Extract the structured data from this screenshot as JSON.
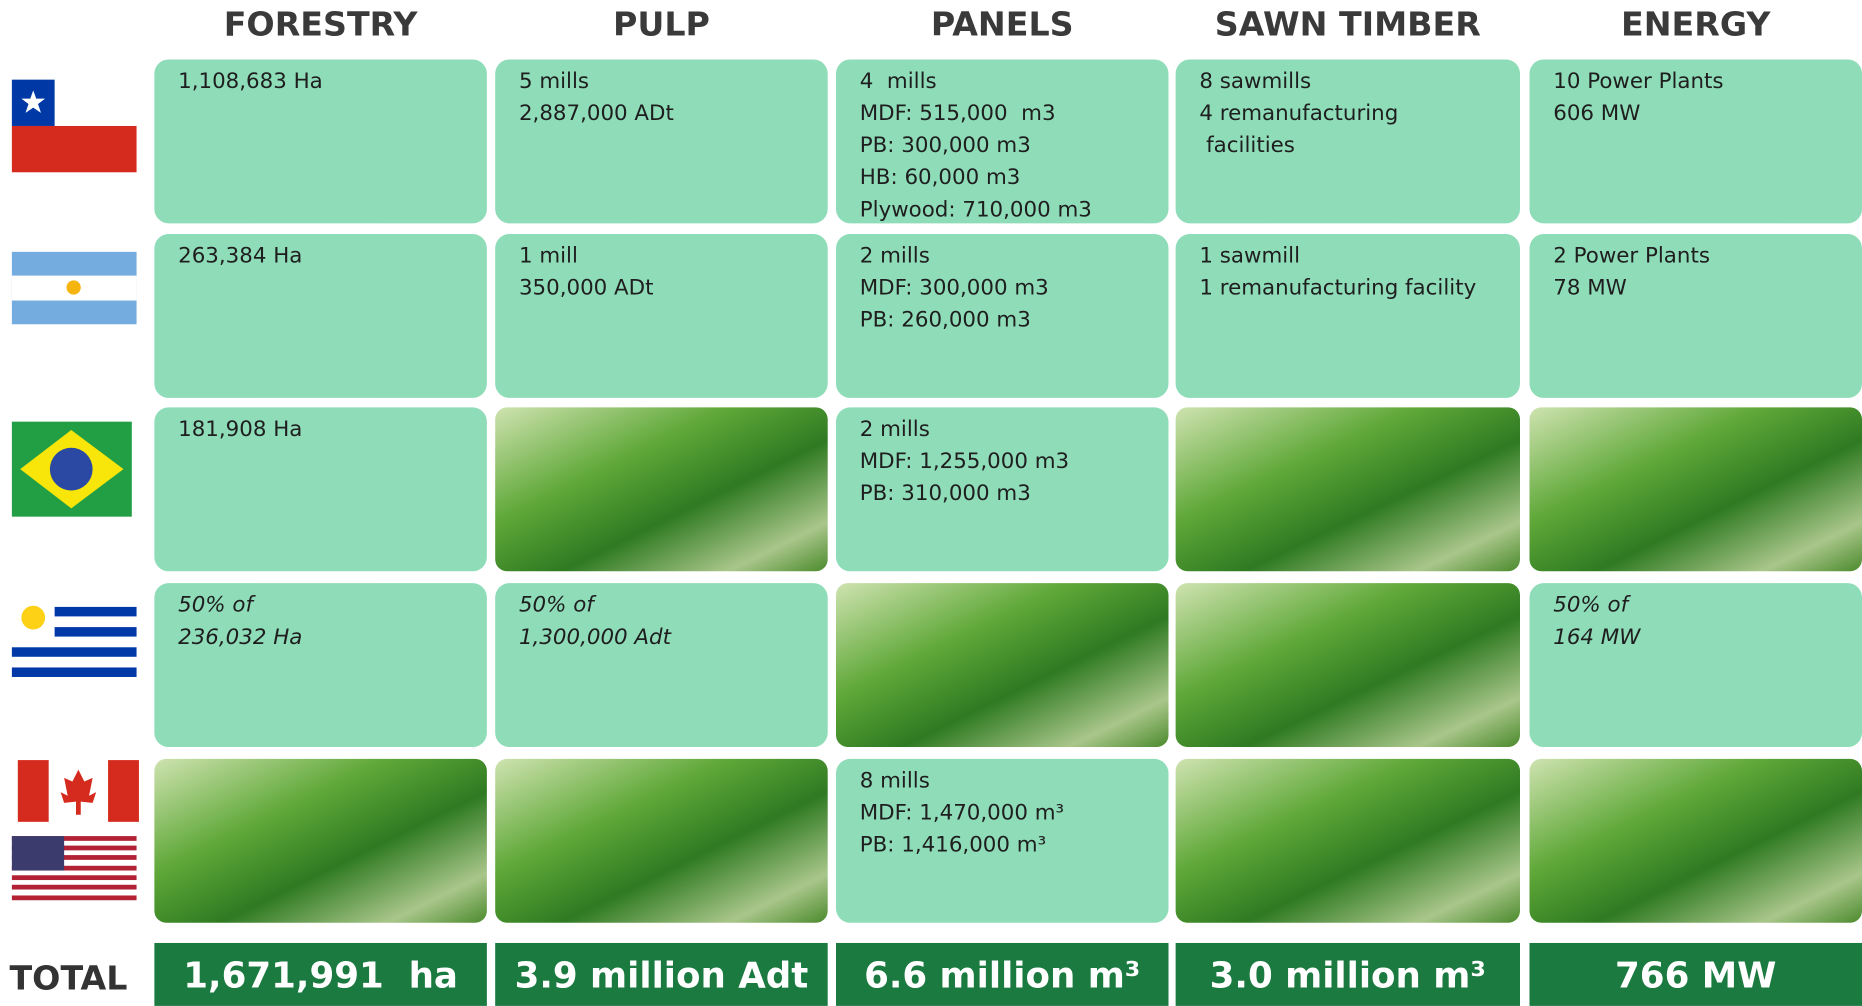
{
  "columns": [
    "FORESTRY",
    "PULP",
    "PANELS",
    "SAWN TIMBER",
    "ENERGY"
  ],
  "rows": [
    [
      [
        "1,108,683 Ha"
      ],
      [
        "5 mills",
        "2,887,000 ADt"
      ],
      [
        "4  mills",
        "MDF: 515,000  m3",
        "PB: 300,000 m3",
        "HB: 60,000 m3",
        "Plywood: 710,000 m3"
      ],
      [
        "8 sawmills",
        "4 remanufacturing",
        " facilities"
      ],
      [
        "10 Power Plants",
        "606 MW"
      ]
    ],
    [
      [
        "263,384 Ha"
      ],
      [
        "1 mill",
        "350,000 ADt"
      ],
      [
        "2 mills",
        "MDF: 300,000 m3",
        "PB: 260,000 m3"
      ],
      [
        "1 sawmill",
        "1 remanufacturing facility"
      ],
      [
        "2 Power Plants",
        "78 MW"
      ]
    ],
    [
      [
        "181,908 Ha"
      ],
      null,
      [
        "2 mills",
        "MDF: 1,255,000 m3",
        "PB: 310,000 m3"
      ],
      null,
      null
    ],
    [
      [
        "50% of",
        "236,032 Ha"
      ],
      [
        "50% of",
        "1,300,000 Adt"
      ],
      null,
      null,
      [
        "50% of",
        "164 MW"
      ]
    ],
    [
      null,
      null,
      [
        "8 mills",
        "MDF: 1,470,000 m³",
        "PB: 1,416,000 m³"
      ],
      null,
      null
    ]
  ],
  "total": {
    "label": "TOTAL",
    "values": [
      "1,671,991  ha",
      "3.9 million Adt",
      "6.6 million m³",
      "3.0 million m³",
      "766 MW"
    ]
  }
}
